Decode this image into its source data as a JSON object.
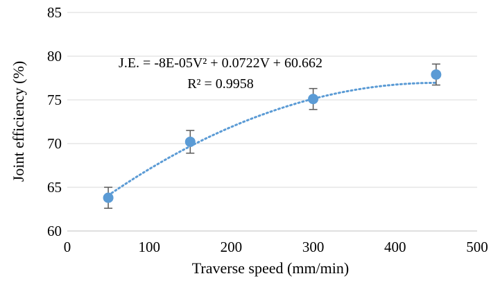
{
  "chart_data": {
    "type": "scatter",
    "xlabel": "Traverse speed  (mm/min)",
    "ylabel": "Joint efficiency (%)",
    "xlim": [
      0,
      500
    ],
    "ylim": [
      60,
      85
    ],
    "x_ticks": [
      0,
      100,
      200,
      300,
      400,
      500
    ],
    "y_ticks": [
      60,
      65,
      70,
      75,
      80,
      85
    ],
    "grid": "horizontal",
    "legend": "none",
    "series": [
      {
        "x": [
          50,
          150,
          300,
          450
        ],
        "y": [
          63.8,
          70.2,
          75.1,
          77.9
        ],
        "error": [
          1.2,
          1.3,
          1.2,
          1.2
        ],
        "marker_color": "#5b9bd5"
      }
    ],
    "trendline": {
      "type": "polynomial",
      "coefficients": [
        -8e-05,
        0.0722,
        60.662
      ],
      "x_range": [
        50,
        450
      ],
      "color": "#5b9bd5",
      "equation": "J.E. = -8E-05V² + 0.0722V + 60.662",
      "r_squared": "R² = 0.9958"
    }
  }
}
